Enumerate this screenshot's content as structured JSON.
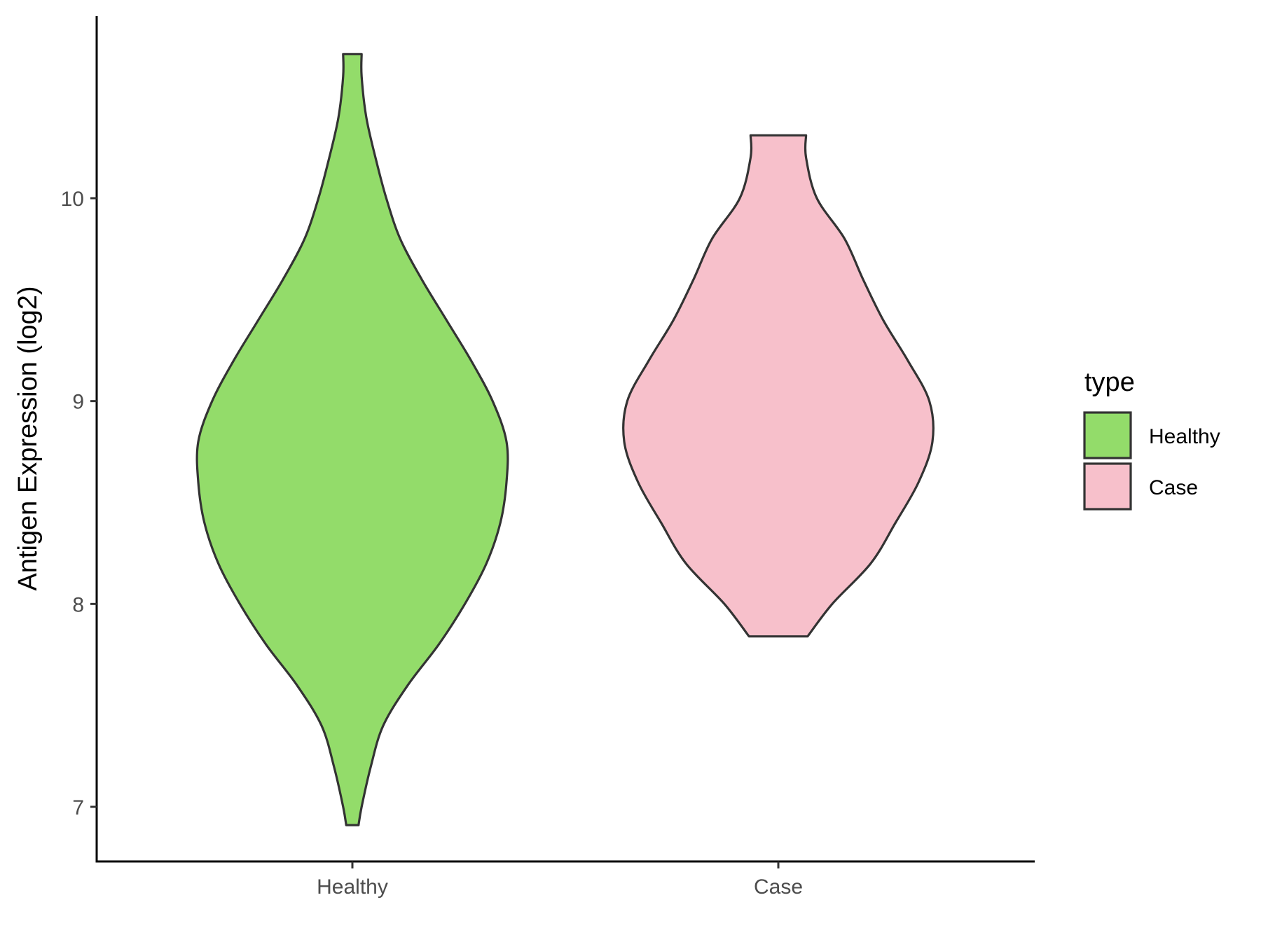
{
  "chart_data": {
    "type": "violin",
    "title": "",
    "xlabel": "",
    "ylabel": "Antigen Expression (log2)",
    "ylim": [
      6.7,
      10.9
    ],
    "yticks": [
      7,
      8,
      9,
      10
    ],
    "categories": [
      "Healthy",
      "Case"
    ],
    "grid": false,
    "legend": {
      "title": "type",
      "position": "right",
      "entries": [
        {
          "label": "Healthy",
          "color": "#93dc6a"
        },
        {
          "label": "Case",
          "color": "#f7c0cb"
        }
      ]
    },
    "series": [
      {
        "name": "Healthy",
        "category": "Healthy",
        "color": "#93dc6a",
        "y_min": 6.91,
        "y_max": 10.71,
        "density_profile": [
          [
            6.91,
            0.04
          ],
          [
            7.0,
            0.06
          ],
          [
            7.2,
            0.12
          ],
          [
            7.4,
            0.2
          ],
          [
            7.6,
            0.36
          ],
          [
            7.8,
            0.56
          ],
          [
            8.0,
            0.73
          ],
          [
            8.2,
            0.87
          ],
          [
            8.4,
            0.96
          ],
          [
            8.6,
            1.0
          ],
          [
            8.8,
            1.0
          ],
          [
            9.0,
            0.91
          ],
          [
            9.2,
            0.77
          ],
          [
            9.4,
            0.61
          ],
          [
            9.6,
            0.45
          ],
          [
            9.8,
            0.31
          ],
          [
            10.0,
            0.22
          ],
          [
            10.2,
            0.15
          ],
          [
            10.4,
            0.09
          ],
          [
            10.6,
            0.06
          ],
          [
            10.71,
            0.06
          ]
        ]
      },
      {
        "name": "Case",
        "category": "Case",
        "color": "#f7c0cb",
        "y_min": 7.84,
        "y_max": 10.31,
        "density_profile": [
          [
            7.84,
            0.19
          ],
          [
            8.0,
            0.35
          ],
          [
            8.2,
            0.6
          ],
          [
            8.4,
            0.76
          ],
          [
            8.6,
            0.91
          ],
          [
            8.8,
            1.0
          ],
          [
            9.0,
            0.98
          ],
          [
            9.2,
            0.84
          ],
          [
            9.4,
            0.68
          ],
          [
            9.6,
            0.55
          ],
          [
            9.8,
            0.43
          ],
          [
            10.0,
            0.25
          ],
          [
            10.2,
            0.18
          ],
          [
            10.31,
            0.18
          ]
        ]
      }
    ]
  }
}
